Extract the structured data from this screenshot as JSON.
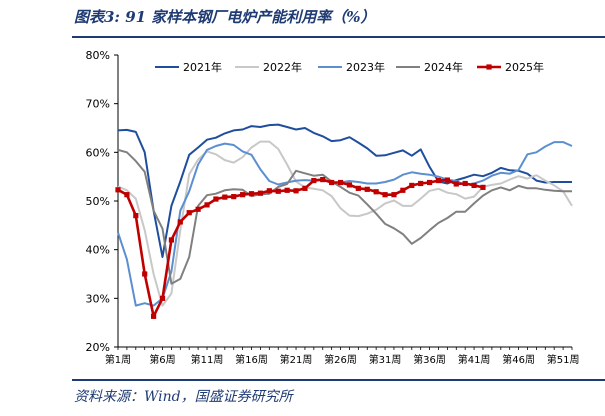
{
  "figure": {
    "title": "图表3:  91 家样本钢厂电炉产能利用率（%）",
    "source": "资料来源：Wind，国盛证券研究所"
  },
  "colors": {
    "2021": "#1f4e9c",
    "2022": "#c8c8c8",
    "2023": "#5b8fd1",
    "2024": "#808080",
    "2025": "#c00000",
    "accent": "#1f3b73"
  },
  "chart_data": {
    "type": "line",
    "ylim": [
      20,
      80
    ],
    "yticks": [
      "20%",
      "30%",
      "40%",
      "50%",
      "60%",
      "70%",
      "80%"
    ],
    "ytick_values": [
      20,
      30,
      40,
      50,
      60,
      70,
      80
    ],
    "xlim": [
      1,
      52
    ],
    "xticks": [
      "第1周",
      "第6周",
      "第11周",
      "第16周",
      "第21周",
      "第26周",
      "第31周",
      "第36周",
      "第41周",
      "第46周",
      "第51周"
    ],
    "xtick_values": [
      1,
      6,
      11,
      16,
      21,
      26,
      31,
      36,
      41,
      46,
      51
    ],
    "grid": false,
    "legend_position": "top",
    "series": [
      {
        "name": "2021年",
        "color_key": "2021",
        "marker": false,
        "x_start": 1,
        "values": [
          64.5,
          64.6,
          64.2,
          60,
          48,
          38.5,
          49,
          54,
          59.5,
          61,
          62.6,
          63,
          63.9,
          64.5,
          64.7,
          65.4,
          65.2,
          65.6,
          65.7,
          65.2,
          64.7,
          65,
          64,
          63.3,
          62.3,
          62.5,
          63.1,
          62,
          60.8,
          59.3,
          59.4,
          59.9,
          60.4,
          59.3,
          60.6,
          57,
          54,
          53.6,
          54.3,
          54.8,
          55.4,
          55.1,
          55.8,
          56.8,
          56.3,
          56.2,
          55.6,
          54.2,
          53.8,
          53.9,
          53.9,
          53.9
        ]
      },
      {
        "name": "2022年",
        "color_key": "2022",
        "marker": false,
        "x_start": 1,
        "values": [
          53,
          52.2,
          50.5,
          44,
          35,
          28.5,
          31,
          44,
          55.5,
          58.5,
          60.2,
          59.6,
          58.4,
          57.9,
          59,
          61,
          62.2,
          62.2,
          60.7,
          57.5,
          54,
          52.8,
          52.5,
          52.2,
          51,
          48.5,
          47,
          46.9,
          47.4,
          48.2,
          49.5,
          50.1,
          49,
          49,
          50.5,
          52.1,
          52.5,
          51.7,
          51.4,
          50.5,
          50.9,
          52.9,
          53.3,
          53.6,
          54.4,
          55.1,
          54.6,
          55.3,
          54.2,
          53.2,
          52,
          49
        ]
      },
      {
        "name": "2023年",
        "color_key": "2023",
        "marker": false,
        "x_start": 1,
        "values": [
          43.5,
          38,
          28.5,
          29,
          28.5,
          30,
          35.5,
          48,
          52,
          57.5,
          60.5,
          61.3,
          61.8,
          61.5,
          60.2,
          59.5,
          56.5,
          54.1,
          53.4,
          53.8,
          54.2,
          54.3,
          54.2,
          54.4,
          53.8,
          53.8,
          54.1,
          53.9,
          53.6,
          53.6,
          53.9,
          54.4,
          55.4,
          55.9,
          55.6,
          55.4,
          55,
          54.4,
          54.1,
          53.3,
          53.6,
          54.2,
          55.2,
          55.8,
          55.6,
          56.4,
          59.6,
          60,
          61.2,
          62.1,
          62.1,
          61.3
        ]
      },
      {
        "name": "2024年",
        "color_key": "2024",
        "marker": false,
        "x_start": 1,
        "values": [
          60.5,
          60,
          58.2,
          56,
          48,
          44.3,
          33,
          34,
          38.5,
          49,
          51.2,
          51.5,
          52.2,
          52.4,
          52.3,
          51,
          51.4,
          51.5,
          52.9,
          53.5,
          56.2,
          55.7,
          55.2,
          55.4,
          54,
          52.9,
          51.7,
          51.1,
          49.3,
          47.4,
          45.3,
          44.4,
          43.2,
          41.2,
          42.4,
          44,
          45.5,
          46.5,
          47.8,
          47.8,
          49.5,
          51.1,
          52.2,
          52.8,
          52.2,
          53.1,
          52.6,
          52.6,
          52.3,
          52.1,
          52,
          52
        ]
      },
      {
        "name": "2025年",
        "color_key": "2025",
        "marker": true,
        "x_start": 1,
        "values": [
          52.3,
          51.3,
          47,
          35,
          26.3,
          30,
          42,
          45.7,
          47.6,
          48.3,
          49.2,
          50.4,
          50.8,
          50.9,
          51.3,
          51.5,
          51.6,
          52.1,
          52,
          52.2,
          52.1,
          52.6,
          54.2,
          54.4,
          53.8,
          53.8,
          53.3,
          52.6,
          52.4,
          51.9,
          51.3,
          51.3,
          52.2,
          53.2,
          53.6,
          53.8,
          54.2,
          54.3,
          53.5,
          53.6,
          53.2,
          52.8
        ]
      }
    ]
  }
}
